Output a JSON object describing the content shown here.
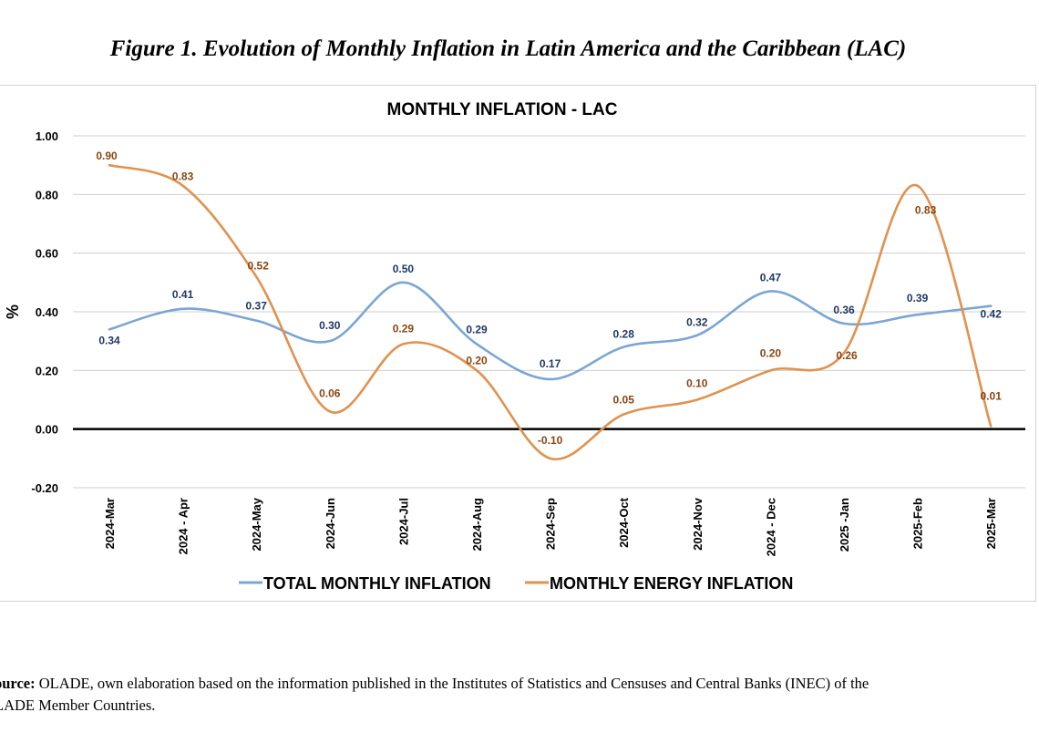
{
  "figure": {
    "caption": "Figure 1. Evolution of Monthly Inflation in Latin America and the Caribbean (LAC)"
  },
  "source": {
    "label": "ource:",
    "text": " OLADE, own elaboration based on the information published in the Institutes of Statistics and Censuses and Central Banks (INEC) of the",
    "text2": "LADE Member Countries."
  },
  "chart_data": {
    "type": "line",
    "title": "MONTHLY INFLATION - LAC",
    "xlabel": "",
    "ylabel": "%",
    "ylim": [
      -0.2,
      1.0
    ],
    "yticks": [
      "1.00",
      "0.80",
      "0.60",
      "0.40",
      "0.20",
      "0.00",
      "-0.20"
    ],
    "ytick_values": [
      1.0,
      0.8,
      0.6,
      0.4,
      0.2,
      0.0,
      -0.2
    ],
    "grid": true,
    "legend_position": "bottom",
    "categories": [
      "2024-Mar",
      "2024 - Apr",
      "2024-May",
      "2024-Jun",
      "2024-Jul",
      "2024-Aug",
      "2024-Sep",
      "2024-Oct",
      "2024-Nov",
      "2024 - Dec",
      "2025 -Jan",
      "2025-Feb",
      "2025-Mar"
    ],
    "series": [
      {
        "name": "TOTAL MONTHLY INFLATION",
        "color": "#7ba6d4",
        "label_color": "#1f3864",
        "values": [
          0.34,
          0.41,
          0.37,
          0.3,
          0.5,
          0.29,
          0.17,
          0.28,
          0.32,
          0.47,
          0.36,
          0.39,
          0.42
        ],
        "labels": [
          "0.34",
          "0.41",
          "0.37",
          "0.30",
          "0.50",
          "0.29",
          "0.17",
          "0.28",
          "0.32",
          "0.47",
          "0.36",
          "0.39",
          "0.42"
        ]
      },
      {
        "name": "MONTHLY ENERGY INFLATION",
        "color": "#e0924e",
        "label_color": "#8b4513",
        "values": [
          0.9,
          0.83,
          0.52,
          0.06,
          0.29,
          0.2,
          -0.1,
          0.05,
          0.1,
          0.2,
          0.26,
          0.83,
          0.01
        ],
        "labels": [
          "0.90",
          "0.83",
          "0.52",
          "0.06",
          "0.29",
          "0.20",
          "-0.10",
          "0.05",
          "0.10",
          "0.20",
          "0.26",
          "0.83",
          "0.01"
        ]
      }
    ]
  }
}
